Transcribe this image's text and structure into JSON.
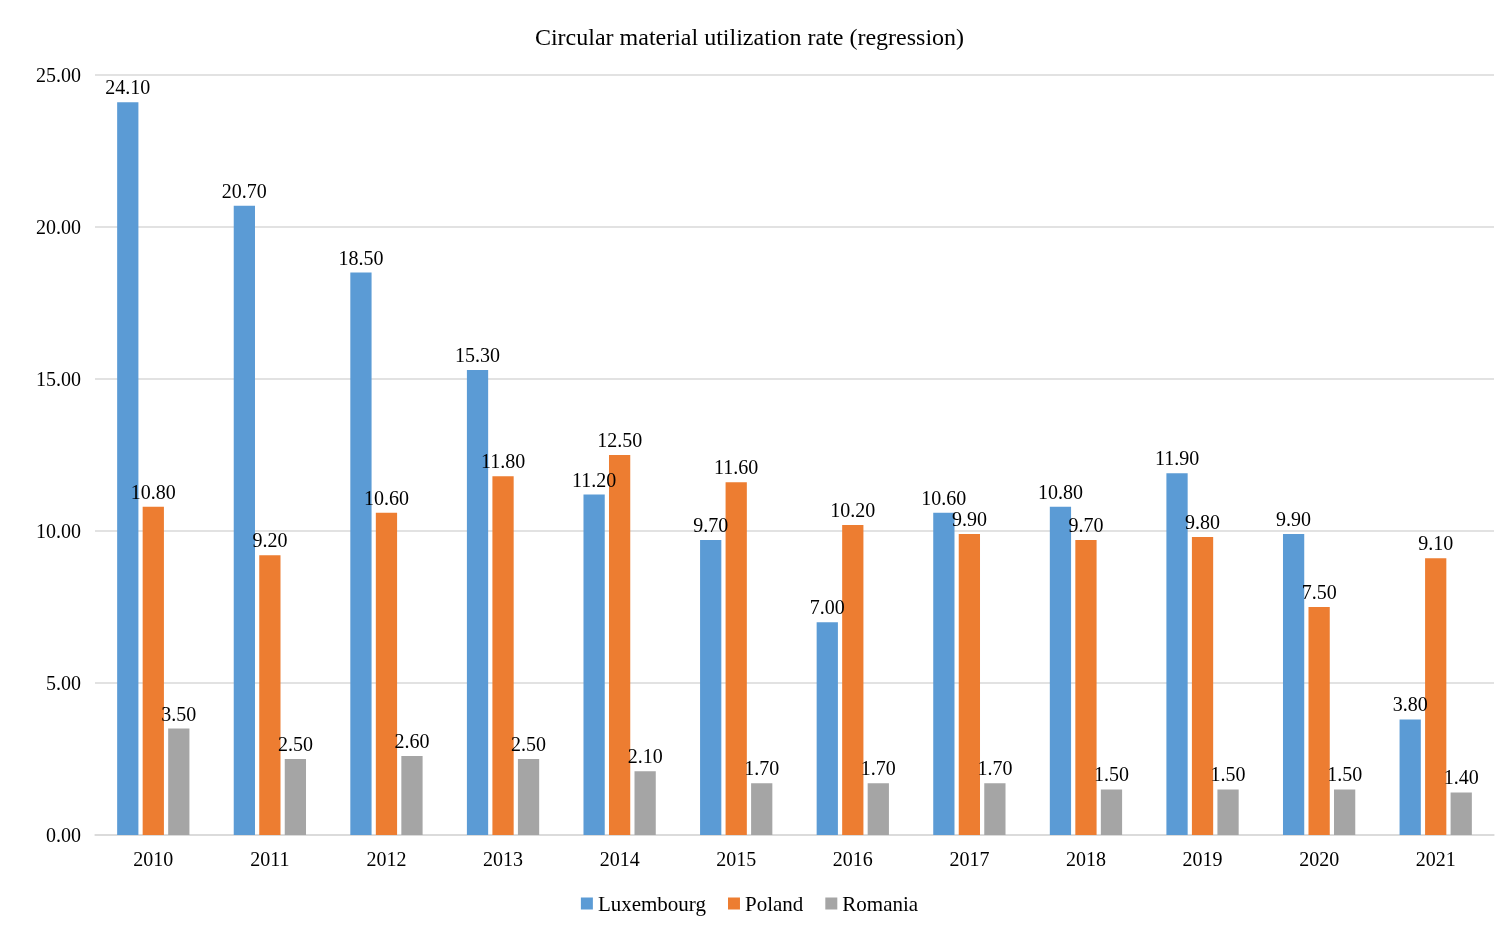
{
  "chart_data": {
    "type": "bar",
    "title": "Circular material utilization rate (regression)",
    "categories": [
      "2010",
      "2011",
      "2012",
      "2013",
      "2014",
      "2015",
      "2016",
      "2017",
      "2018",
      "2019",
      "2020",
      "2021"
    ],
    "series": [
      {
        "name": "Luxembourg",
        "color": "#5b9bd5",
        "values": [
          24.1,
          20.7,
          18.5,
          15.3,
          11.2,
          9.7,
          7.0,
          10.6,
          10.8,
          11.9,
          9.9,
          3.8
        ],
        "value_labels": [
          "24.10",
          "20.70",
          "18.50",
          "15.30",
          "11.20",
          "9.70",
          "7.00",
          "10.60",
          "10.80",
          "11.90",
          "9.90",
          "3.80"
        ]
      },
      {
        "name": "Poland",
        "color": "#ed7d31",
        "values": [
          10.8,
          9.2,
          10.6,
          11.8,
          12.5,
          11.6,
          10.2,
          9.9,
          9.7,
          9.8,
          7.5,
          9.1
        ],
        "value_labels": [
          "10.80",
          "9.20",
          "10.60",
          "11.80",
          "12.50",
          "11.60",
          "10.20",
          "9.90",
          "9.70",
          "9.80",
          "7.50",
          "9.10"
        ]
      },
      {
        "name": "Romania",
        "color": "#a5a5a5",
        "values": [
          3.5,
          2.5,
          2.6,
          2.5,
          2.1,
          1.7,
          1.7,
          1.7,
          1.5,
          1.5,
          1.5,
          1.4
        ],
        "value_labels": [
          "3.50",
          "2.50",
          "2.60",
          "2.50",
          "2.10",
          "1.70",
          "1.70",
          "1.70",
          "1.50",
          "1.50",
          "1.50",
          "1.40"
        ]
      }
    ],
    "ylim": [
      0,
      25
    ],
    "yticks": [
      {
        "value": 0,
        "label": "0.00"
      },
      {
        "value": 5,
        "label": "5.00"
      },
      {
        "value": 10,
        "label": "10.00"
      },
      {
        "value": 15,
        "label": "15.00"
      },
      {
        "value": 20,
        "label": "20.00"
      },
      {
        "value": 25,
        "label": "25.00"
      }
    ],
    "grid": "y",
    "legend": "bottom"
  }
}
